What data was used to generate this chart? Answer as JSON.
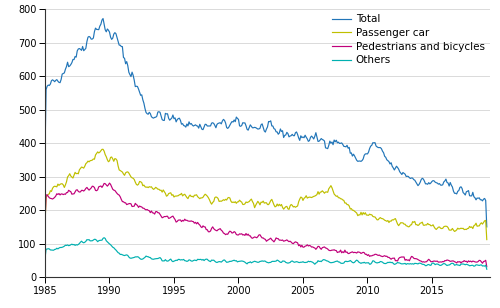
{
  "title": "",
  "xlabel": "",
  "ylabel": "",
  "xlim": [
    1985.0,
    2019.5
  ],
  "ylim": [
    0,
    800
  ],
  "yticks": [
    0,
    100,
    200,
    300,
    400,
    500,
    600,
    700,
    800
  ],
  "xticks": [
    1985,
    1990,
    1995,
    2000,
    2005,
    2010,
    2015
  ],
  "colors": {
    "Total": "#2175B8",
    "Passenger car": "#BFBF00",
    "Pedestrians and bicycles": "#C0007A",
    "Others": "#00B0B0"
  },
  "line_width": 0.85,
  "background_color": "#ffffff",
  "grid_color": "#cccccc",
  "legend_fontsize": 7.5
}
